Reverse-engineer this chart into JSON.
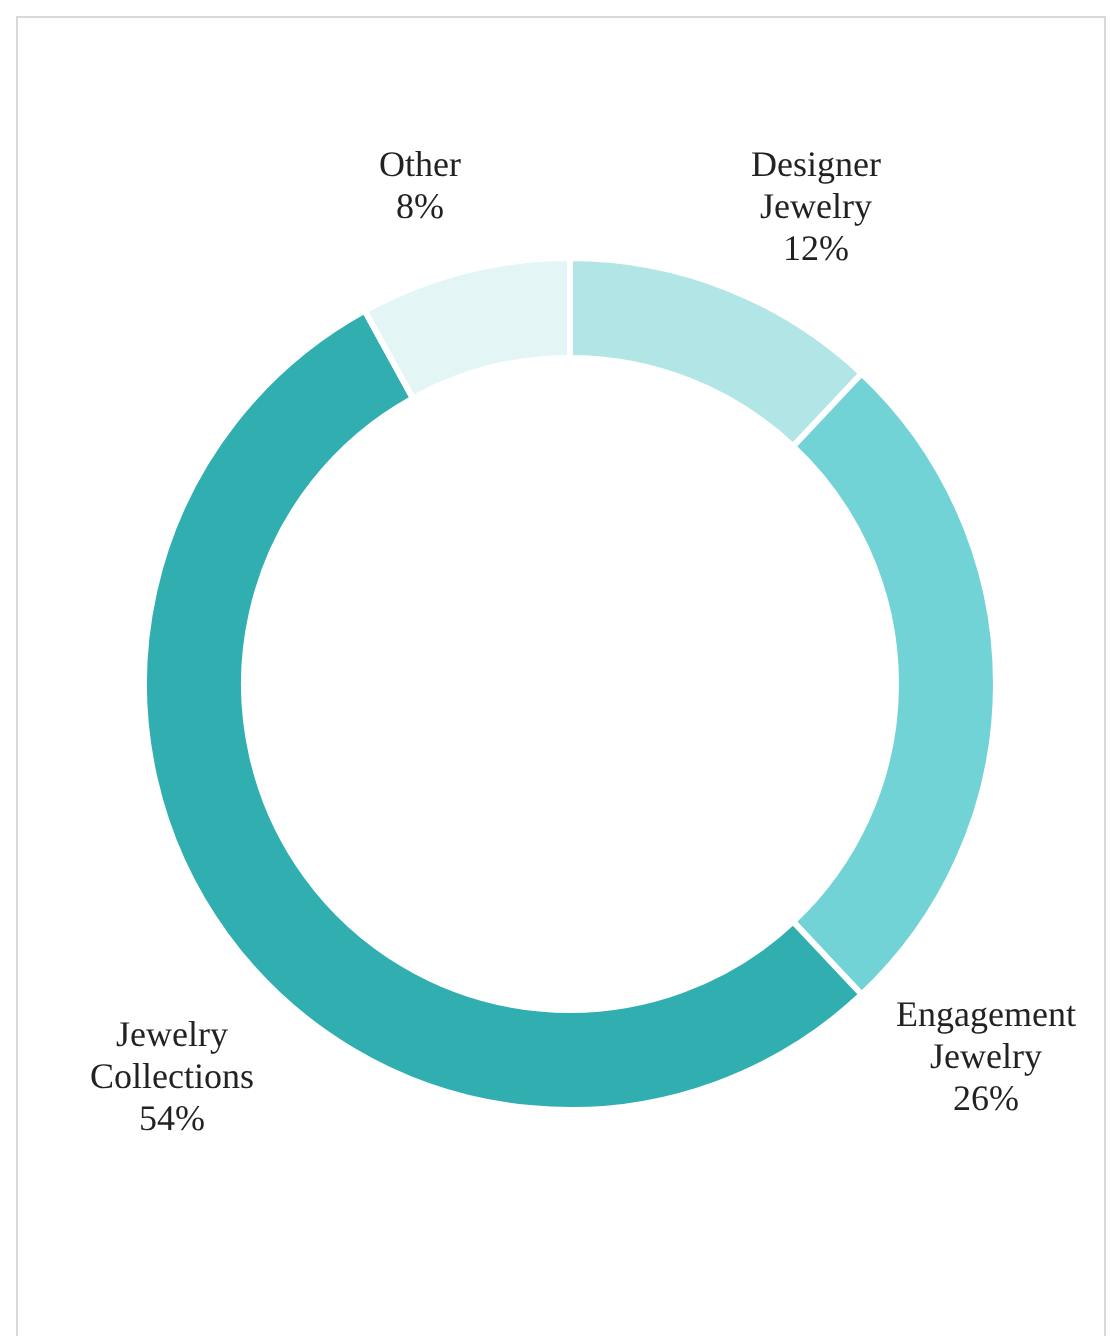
{
  "chart_data": {
    "type": "donut",
    "categories": [
      "Designer Jewelry",
      "Engagement Jewelry",
      "Jewelry Collections",
      "Other"
    ],
    "values": [
      12,
      26,
      54,
      8
    ],
    "colors": [
      "#b2e6e6",
      "#72d3d6",
      "#31aeb0",
      "#e3f5f5"
    ],
    "value_labels": [
      "12%",
      "26%",
      "54%",
      "8%"
    ]
  }
}
